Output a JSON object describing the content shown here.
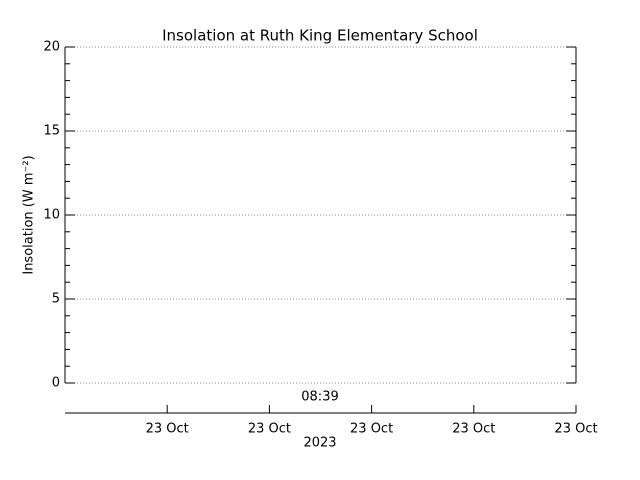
{
  "chart_data": {
    "type": "line",
    "title": "Insolation at Ruth King Elementary School",
    "ylabel": "Insolation (W m⁻²)",
    "series": [],
    "ylim": [
      0,
      20
    ],
    "yticks": [
      0,
      5,
      10,
      15,
      20
    ],
    "grid": true,
    "annotation": "08:39",
    "date_ticks": [
      "23 Oct",
      "23 Oct",
      "23 Oct",
      "23 Oct",
      "23 Oct"
    ],
    "xlabel": "2023"
  }
}
